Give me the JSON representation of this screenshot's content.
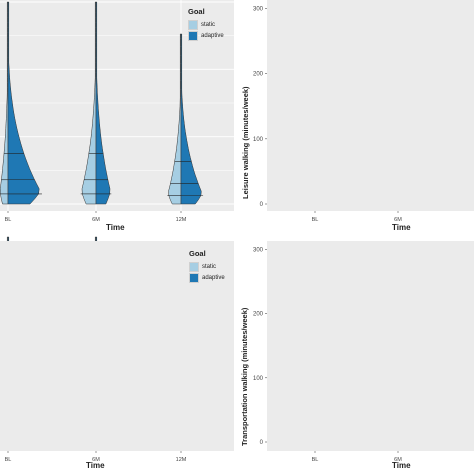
{
  "chart_data": [
    {
      "type": "violin",
      "panel": "top-left",
      "xlabel": "Time",
      "ylabel": "",
      "categories": [
        "BL",
        "6M",
        "12M"
      ],
      "legend": {
        "title": "Goal",
        "placement": "top-right",
        "entries": [
          {
            "name": "static",
            "color": "#a6cee3"
          },
          {
            "name": "adaptive",
            "color": "#1f78b4"
          }
        ]
      },
      "series": [
        {
          "name": "static",
          "color": "#a6cee3"
        },
        {
          "name": "adaptive",
          "color": "#1f78b4"
        }
      ]
    },
    {
      "type": "violin",
      "panel": "top-right",
      "xlabel": "Time",
      "ylabel": "Leisure walking (minutes/week)",
      "categories": [
        "BL",
        "6M"
      ],
      "yticks": [
        0,
        100,
        200,
        300
      ],
      "ylim": [
        0,
        310
      ],
      "series": [
        {
          "color": "#b2df8a"
        },
        {
          "color": "#33a02c"
        }
      ]
    },
    {
      "type": "violin",
      "panel": "bottom-left",
      "xlabel": "Time",
      "ylabel": "",
      "categories": [
        "BL",
        "6M",
        "12M"
      ],
      "legend": {
        "title": "Goal",
        "placement": "top-right",
        "entries": [
          {
            "name": "static",
            "color": "#a6cee3"
          },
          {
            "name": "adaptive",
            "color": "#1f78b4"
          }
        ]
      },
      "series": [
        {
          "name": "static",
          "color": "#a6cee3"
        },
        {
          "name": "adaptive",
          "color": "#1f78b4"
        }
      ]
    },
    {
      "type": "violin",
      "panel": "bottom-right",
      "xlabel": "Time",
      "ylabel": "Transportation walking (minutes/week)",
      "categories": [
        "BL",
        "6M"
      ],
      "yticks": [
        0,
        100,
        200,
        300
      ],
      "ylim": [
        0,
        310
      ],
      "series": [
        {
          "color": "#b2df8a"
        },
        {
          "color": "#33a02c"
        }
      ]
    }
  ]
}
